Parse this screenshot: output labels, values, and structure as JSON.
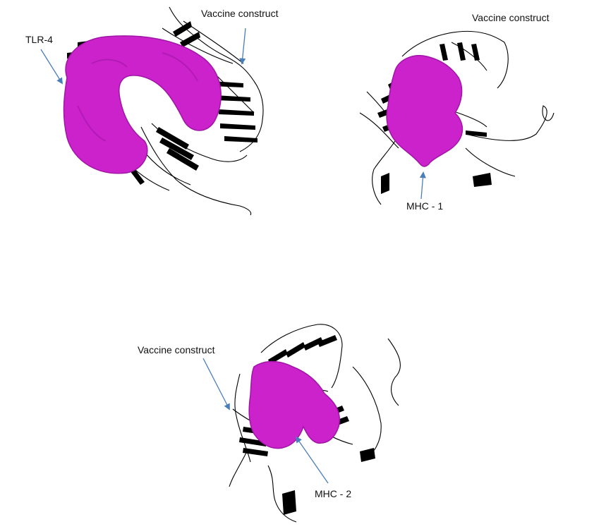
{
  "colors": {
    "surface": "#cc22cc",
    "surface_dark": "#a015a5",
    "ribbon": "#000000",
    "arrow": "#4a7ebb"
  },
  "panels": {
    "tlr4": {
      "receptor_label": "TLR-4",
      "vaccine_label": "Vaccine construct"
    },
    "mhc1": {
      "receptor_label": "MHC - 1",
      "vaccine_label": "Vaccine construct"
    },
    "mhc2": {
      "receptor_label": "MHC - 2",
      "vaccine_label": "Vaccine construct"
    }
  }
}
